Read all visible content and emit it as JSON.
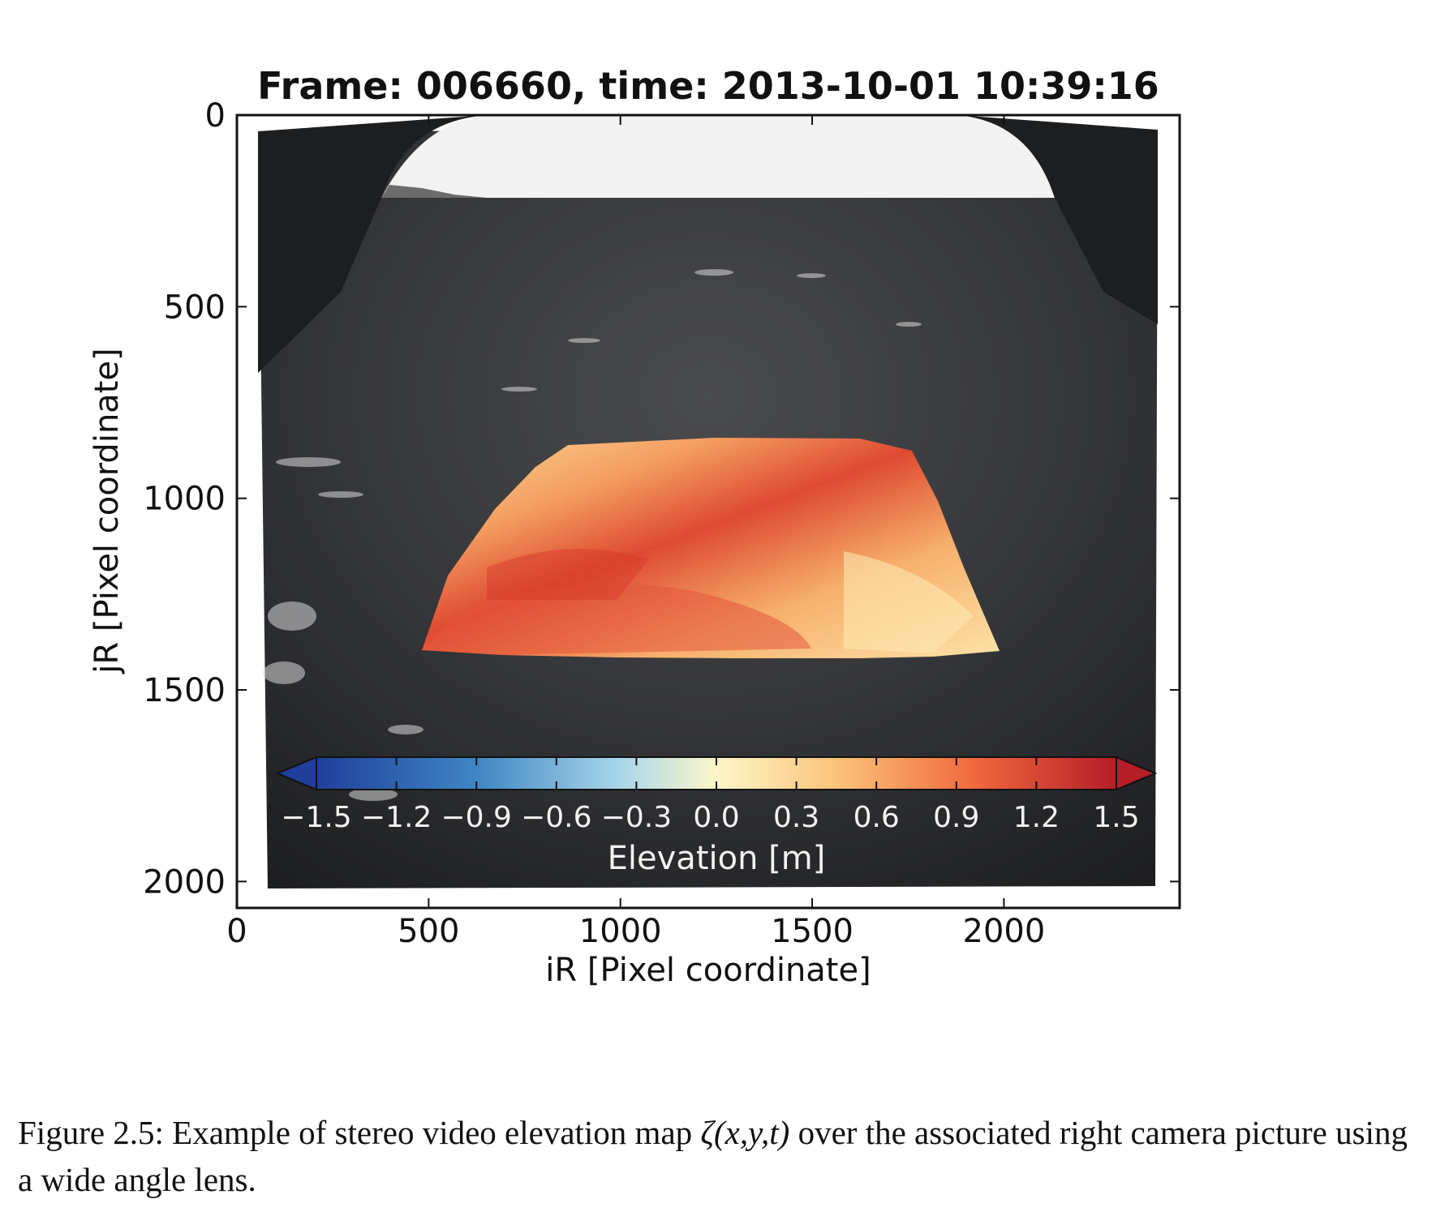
{
  "figure": {
    "title": "Frame: 006660, time: 2013-10-01 10:39:16",
    "xlabel": "iR [Pixel coordinate]",
    "ylabel": "jR [Pixel coordinate]",
    "xticks": [
      "0",
      "500",
      "1000",
      "1500",
      "2000"
    ],
    "yticks": [
      "0",
      "500",
      "1000",
      "1500",
      "2000"
    ],
    "colorbar_label": "Elevation [m]",
    "colorbar_ticks": [
      "−1.5",
      "−1.2",
      "−0.9",
      "−0.6",
      "−0.3",
      "0.0",
      "0.3",
      "0.6",
      "0.9",
      "1.2",
      "1.5"
    ]
  },
  "caption": {
    "prefix": "Figure 2.5: Example of stereo video elevation map ",
    "math": "ζ(x,y,t)",
    "suffix": " over the associated right camera picture using a wide angle lens."
  },
  "colors": {
    "sea_dark": "#2b2c2e",
    "sky": "#f2f2f2",
    "elevation_low": "#1f3f9a",
    "elevation_mid": "#fdf6c8",
    "elevation_high": "#c8202a"
  }
}
